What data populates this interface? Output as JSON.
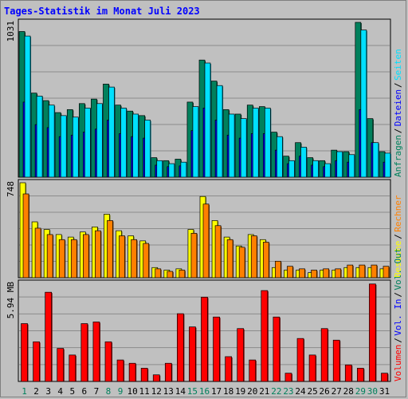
{
  "title": "Tages-Statistik im Monat Juli 2023",
  "colors": {
    "background": "#c0c0c0",
    "plot_bg": "#c0c0c0",
    "title": "#0000ff",
    "grid": "#8c8c8c",
    "anfragen": "#00805c",
    "dateien": "#0000ff",
    "seiten": "#00e0ff",
    "besuche": "#ffff00",
    "rechner": "#ff8000",
    "volumen": "#ff0000",
    "weekday_label": "#000000",
    "weekend_label": "#00805c"
  },
  "chart_data": [
    {
      "type": "bar",
      "name": "hits-panel",
      "scale_label": "1031",
      "ymax": 1031,
      "categories": [
        "1",
        "2",
        "3",
        "4",
        "5",
        "6",
        "7",
        "8",
        "9",
        "10",
        "11",
        "12",
        "13",
        "14",
        "15",
        "16",
        "17",
        "18",
        "19",
        "20",
        "21",
        "22",
        "23",
        "24",
        "25",
        "26",
        "27",
        "28",
        "29",
        "30",
        "31"
      ],
      "series": [
        {
          "name": "Anfragen",
          "color": "#00805c",
          "values": [
            970,
            560,
            510,
            430,
            450,
            490,
            520,
            620,
            480,
            440,
            410,
            130,
            110,
            120,
            500,
            780,
            640,
            450,
            420,
            480,
            470,
            300,
            140,
            230,
            130,
            110,
            180,
            170,
            1031,
            390,
            170
          ]
        },
        {
          "name": "Dateien",
          "color": "#0000ff",
          "values": [
            500,
            350,
            330,
            270,
            280,
            300,
            320,
            380,
            290,
            270,
            260,
            80,
            70,
            75,
            310,
            460,
            380,
            280,
            260,
            290,
            290,
            180,
            90,
            140,
            80,
            70,
            110,
            100,
            450,
            230,
            100
          ]
        },
        {
          "name": "Seiten",
          "color": "#00e0ff",
          "values": [
            940,
            540,
            480,
            410,
            400,
            460,
            490,
            600,
            460,
            420,
            380,
            110,
            90,
            100,
            470,
            760,
            610,
            420,
            390,
            460,
            460,
            270,
            110,
            200,
            110,
            90,
            170,
            150,
            980,
            230,
            160
          ]
        }
      ],
      "side_labels": [
        {
          "text": "Anfragen",
          "color": "#00805c"
        },
        {
          "text": "Dateien",
          "color": "#0000ff"
        },
        {
          "text": "Seiten",
          "color": "#00e0ff"
        }
      ]
    },
    {
      "type": "bar",
      "name": "visits-panel",
      "scale_label": "748",
      "ymax": 748,
      "categories": [
        "1",
        "2",
        "3",
        "4",
        "5",
        "6",
        "7",
        "8",
        "9",
        "10",
        "11",
        "12",
        "13",
        "14",
        "15",
        "16",
        "17",
        "18",
        "19",
        "20",
        "21",
        "22",
        "23",
        "24",
        "25",
        "26",
        "27",
        "28",
        "29",
        "30",
        "31"
      ],
      "series": [
        {
          "name": "Besuche",
          "color": "#ffff00",
          "values": [
            748,
            440,
            380,
            340,
            320,
            360,
            400,
            500,
            370,
            330,
            290,
            80,
            60,
            70,
            380,
            640,
            450,
            320,
            250,
            340,
            300,
            80,
            60,
            60,
            40,
            60,
            60,
            80,
            80,
            80,
            70
          ]
        },
        {
          "name": "Rechner",
          "color": "#ff8000",
          "values": [
            660,
            390,
            340,
            300,
            300,
            340,
            370,
            450,
            330,
            300,
            270,
            70,
            50,
            60,
            350,
            580,
            410,
            300,
            240,
            330,
            280,
            130,
            90,
            70,
            60,
            70,
            70,
            100,
            100,
            100,
            90
          ]
        }
      ],
      "side_labels": [
        {
          "text": "Besuche",
          "color": "#ffff00"
        },
        {
          "text": "Rechner",
          "color": "#ff8000"
        }
      ]
    },
    {
      "type": "bar",
      "name": "volume-panel",
      "scale_label": "5.94 MB",
      "ymax": 5.94,
      "categories": [
        "1",
        "2",
        "3",
        "4",
        "5",
        "6",
        "7",
        "8",
        "9",
        "10",
        "11",
        "12",
        "13",
        "14",
        "15",
        "16",
        "17",
        "18",
        "19",
        "20",
        "21",
        "22",
        "23",
        "24",
        "25",
        "26",
        "27",
        "28",
        "29",
        "30",
        "31"
      ],
      "series": [
        {
          "name": "Volumen",
          "color": "#ff0000",
          "values": [
            3.5,
            2.4,
            5.4,
            2.0,
            1.6,
            3.5,
            3.6,
            2.4,
            1.3,
            1.1,
            0.8,
            0.4,
            1.1,
            4.1,
            3.3,
            5.1,
            3.9,
            1.5,
            3.2,
            1.3,
            5.5,
            3.9,
            0.5,
            2.6,
            1.6,
            3.2,
            2.5,
            1.0,
            0.8,
            5.9,
            0.5
          ]
        }
      ],
      "side_labels": [
        {
          "text": "Volumen",
          "color": "#ff0000"
        },
        {
          "text": "Vol. In",
          "color": "#0000ff"
        },
        {
          "text": "Vol. Out",
          "color": "#00805c"
        }
      ]
    }
  ],
  "x_axis": {
    "labels": [
      "1",
      "2",
      "3",
      "4",
      "5",
      "6",
      "7",
      "8",
      "9",
      "10",
      "11",
      "12",
      "13",
      "14",
      "15",
      "16",
      "17",
      "18",
      "19",
      "20",
      "21",
      "22",
      "23",
      "24",
      "25",
      "26",
      "27",
      "28",
      "29",
      "30",
      "31"
    ],
    "weekend_days": [
      "1",
      "8",
      "9",
      "15",
      "16",
      "22",
      "23",
      "29",
      "30"
    ]
  }
}
